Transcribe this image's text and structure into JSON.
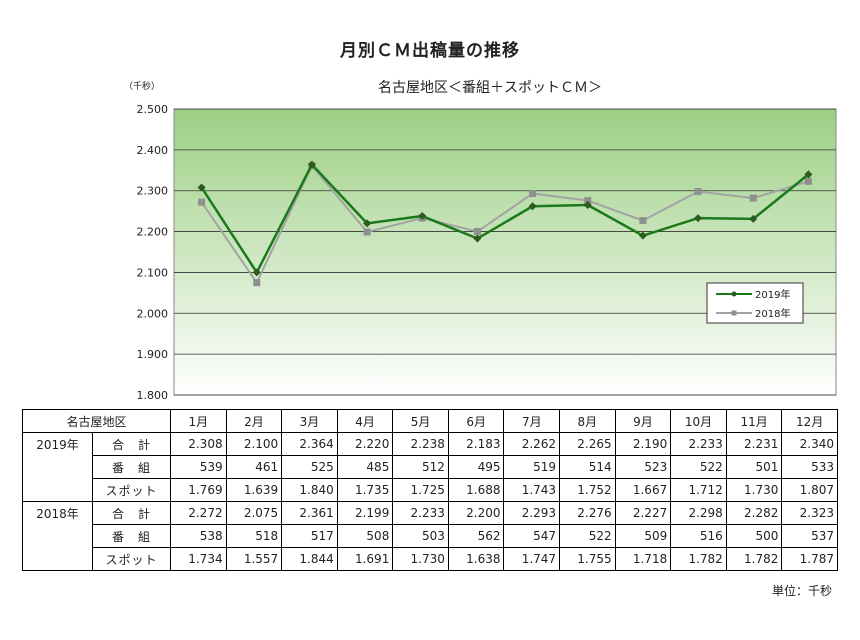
{
  "chart_data": {
    "type": "line",
    "title": "月別ＣＭ出稿量の推移",
    "subtitle": "名古屋地区＜番組＋スポットＣＭ＞",
    "unit_label": "（千秒）",
    "categories": [
      "1月",
      "2月",
      "3月",
      "4月",
      "5月",
      "6月",
      "7月",
      "8月",
      "9月",
      "10月",
      "11月",
      "12月"
    ],
    "ylim": [
      1800,
      2500
    ],
    "yticks": [
      "1.800",
      "1.900",
      "2.000",
      "2.100",
      "2.200",
      "2.300",
      "2.400",
      "2.500"
    ],
    "ytick_values": [
      1800,
      1900,
      2000,
      2100,
      2200,
      2300,
      2400,
      2500
    ],
    "grid": true,
    "legend_position": "right",
    "series": [
      {
        "name": "2019年",
        "values": [
          2308,
          2100,
          2364,
          2220,
          2238,
          2183,
          2262,
          2265,
          2190,
          2233,
          2231,
          2340
        ],
        "color": "#1a7a1a",
        "marker_color": "#2f5a1f"
      },
      {
        "name": "2018年",
        "values": [
          2272,
          2075,
          2361,
          2199,
          2233,
          2200,
          2293,
          2276,
          2227,
          2298,
          2282,
          2323
        ],
        "color": "#a3a3a3",
        "marker_color": "#8f8f8f"
      }
    ],
    "plot_gradient": [
      "#9ccf84",
      "#ffffff"
    ]
  },
  "table": {
    "corner": "名古屋地区",
    "months": [
      "1月",
      "2月",
      "3月",
      "4月",
      "5月",
      "6月",
      "7月",
      "8月",
      "9月",
      "10月",
      "11月",
      "12月"
    ],
    "groups": [
      {
        "year": "2019年",
        "rows": [
          {
            "label": "合　計",
            "values": [
              "2.308",
              "2.100",
              "2.364",
              "2.220",
              "2.238",
              "2.183",
              "2.262",
              "2.265",
              "2.190",
              "2.233",
              "2.231",
              "2.340"
            ]
          },
          {
            "label": "番　組",
            "values": [
              "539",
              "461",
              "525",
              "485",
              "512",
              "495",
              "519",
              "514",
              "523",
              "522",
              "501",
              "533"
            ]
          },
          {
            "label": "スポット",
            "values": [
              "1.769",
              "1.639",
              "1.840",
              "1.735",
              "1.725",
              "1.688",
              "1.743",
              "1.752",
              "1.667",
              "1.712",
              "1.730",
              "1.807"
            ]
          }
        ]
      },
      {
        "year": "2018年",
        "rows": [
          {
            "label": "合　計",
            "values": [
              "2.272",
              "2.075",
              "2.361",
              "2.199",
              "2.233",
              "2.200",
              "2.293",
              "2.276",
              "2.227",
              "2.298",
              "2.282",
              "2.323"
            ]
          },
          {
            "label": "番　組",
            "values": [
              "538",
              "518",
              "517",
              "508",
              "503",
              "562",
              "547",
              "522",
              "509",
              "516",
              "500",
              "537"
            ]
          },
          {
            "label": "スポット",
            "values": [
              "1.734",
              "1.557",
              "1.844",
              "1.691",
              "1.730",
              "1.638",
              "1.747",
              "1.755",
              "1.718",
              "1.782",
              "1.782",
              "1.787"
            ]
          }
        ]
      }
    ]
  },
  "footer": {
    "unit": "単位：千秒"
  }
}
